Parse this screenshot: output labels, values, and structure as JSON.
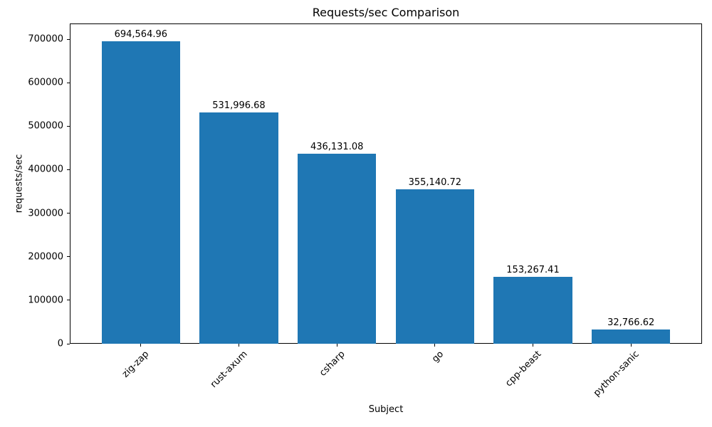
{
  "figure": {
    "title": "Requests/sec Comparison",
    "xlabel": "Subject",
    "ylabel": "requests/sec"
  },
  "chart_data": {
    "type": "bar",
    "title": "Requests/sec Comparison",
    "xlabel": "Subject",
    "ylabel": "requests/sec",
    "categories": [
      "zig-zap",
      "rust-axum",
      "csharp",
      "go",
      "cpp-beast",
      "python-sanic"
    ],
    "values": [
      694564.96,
      531996.68,
      436131.08,
      355140.72,
      153267.41,
      32766.62
    ],
    "value_labels": [
      "694,564.96",
      "531,996.68",
      "436,131.08",
      "355,140.72",
      "153,267.41",
      "32,766.62"
    ],
    "bar_color": "#1f77b4",
    "ylim": [
      0,
      736000
    ],
    "yticks": [
      0,
      100000,
      200000,
      300000,
      400000,
      500000,
      600000,
      700000
    ],
    "ytick_labels": [
      "0",
      "100000",
      "200000",
      "300000",
      "400000",
      "500000",
      "600000",
      "700000"
    ],
    "grid": false,
    "legend": null
  }
}
